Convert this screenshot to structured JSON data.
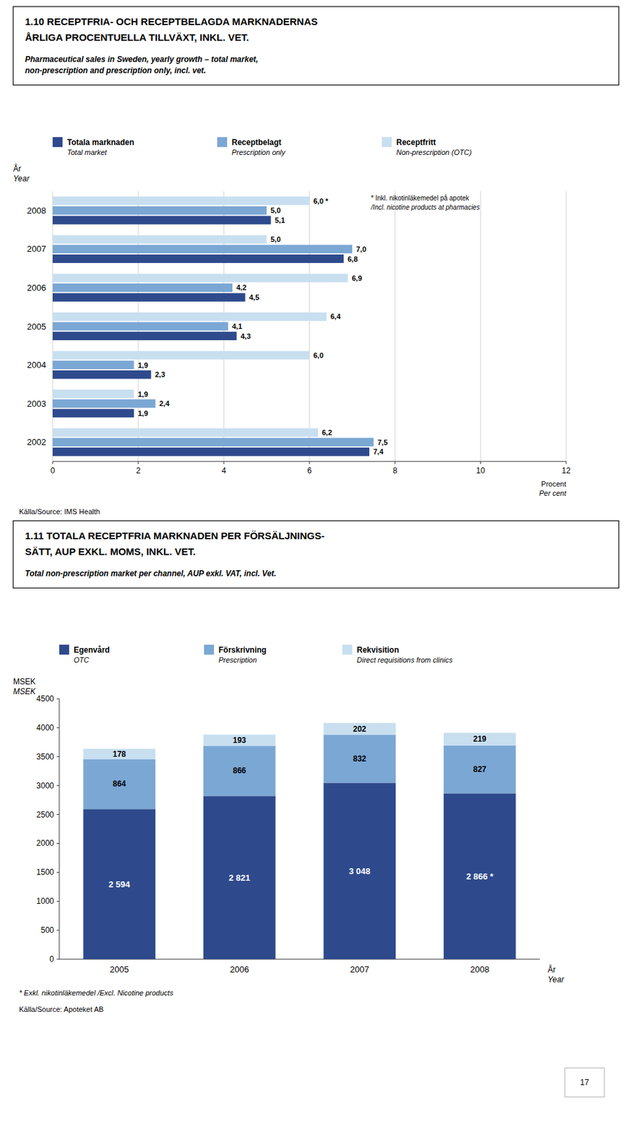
{
  "chart_data": [
    {
      "type": "bar",
      "orientation": "horizontal",
      "title": "1.10 RECEPTFRIA- OCH RECEPTBELAGDA MARKNADERNAS\nÅRLIGA PROCENTUELLA TILLVÄXT, INKL. VET.",
      "subtitle": "Pharmaceutical sales in Sweden, yearly growth – total market,\nnon-prescription and prescription only, incl. vet.",
      "x_label": "Procent\nPer cent",
      "y_label": "År\nYear",
      "categories": [
        "2002",
        "2003",
        "2004",
        "2005",
        "2006",
        "2007",
        "2008"
      ],
      "series": [
        {
          "name": "Totala marknaden\nTotal market",
          "color": "#2E4A8C",
          "values": [
            7.4,
            1.9,
            2.3,
            4.3,
            4.5,
            6.8,
            5.1
          ],
          "value_labels": [
            "7,4",
            "1,9",
            "2,3",
            "4,3",
            "4,5",
            "6,8",
            "5,1"
          ]
        },
        {
          "name": "Receptbelagt\nPrescription only",
          "color": "#7BA7D4",
          "values": [
            7.5,
            2.4,
            1.9,
            4.1,
            4.2,
            7.0,
            5.0
          ],
          "value_labels": [
            "7,5",
            "2,4",
            "1,9",
            "4,1",
            "4,2",
            "7,0",
            "5,0"
          ]
        },
        {
          "name": "Receptfritt\nNon-prescription (OTC)",
          "color": "#C8DFF0",
          "values": [
            6.2,
            1.9,
            6.0,
            6.4,
            6.9,
            5.0,
            6.0
          ],
          "value_labels": [
            "6,2",
            "1,9",
            "6,0",
            "6,4",
            "6,9",
            "5,0",
            "6,0 *"
          ]
        }
      ],
      "xlim": [
        0,
        12
      ],
      "xticks": [
        0,
        2,
        4,
        6,
        8,
        10,
        12
      ],
      "grid": true,
      "data_labels": true,
      "annotation": "* Inkl. nikotinläkemedel på apotek\n/Incl. nicotine products at pharmacies",
      "source": "Källa/Source: IMS Health"
    },
    {
      "type": "bar",
      "stacked": true,
      "title": "1.11 TOTALA RECEPTFRIA MARKNADEN PER FÖRSÄLJNINGS-\nSÄTT, AUP EXKL. MOMS, INKL. VET.",
      "subtitle": "Total non-prescription market per channel, AUP exkl. VAT, incl. Vet.",
      "x_label": "År\nYear",
      "y_label": "MSEK\nMSEK",
      "categories": [
        "2005",
        "2006",
        "2007",
        "2008"
      ],
      "series": [
        {
          "name": "Egenvård\nOTC",
          "color": "#2E4A8C",
          "values": [
            2594,
            2821,
            3048,
            2866
          ],
          "value_labels": [
            "2 594",
            "2 821",
            "3 048",
            "2 866 *"
          ]
        },
        {
          "name": "Förskrivning\nPrescription",
          "color": "#7BA7D4",
          "values": [
            864,
            866,
            832,
            827
          ]
        },
        {
          "name": "Rekvisition\nDirect requisitions from clinics",
          "color": "#C8DFF0",
          "values": [
            178,
            193,
            202,
            219
          ]
        }
      ],
      "ylim": [
        0,
        4500
      ],
      "yticks": [
        0,
        500,
        1000,
        1500,
        2000,
        2500,
        3000,
        3500,
        4000,
        4500
      ],
      "grid": false,
      "data_labels": true,
      "annotation": "* Exkl. nikotinläkemedel /Excl. Nicotine products",
      "source": "Källa/Source: Apoteket AB"
    }
  ],
  "page_number": 17
}
